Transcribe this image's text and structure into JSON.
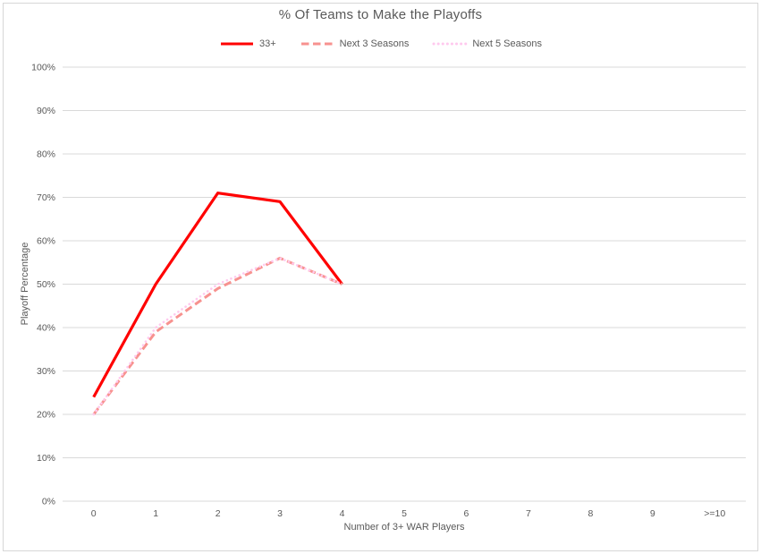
{
  "chart_data": {
    "type": "line",
    "title": "% Of Teams to Make the Playoffs",
    "xlabel": "Number of 3+ WAR Players",
    "ylabel": "Playoff Percentage",
    "categories": [
      "0",
      "1",
      "2",
      "3",
      "4",
      "5",
      "6",
      "7",
      "8",
      "9",
      ">=10"
    ],
    "ylim": [
      0,
      100
    ],
    "ytick_step": 10,
    "ytick_suffix": "%",
    "grid": "horizontal",
    "legend_position": "top-center",
    "colors": {
      "gridline": "#d9d9d9",
      "axis_text": "#595959",
      "title_text": "#595959",
      "chart_border": "#d7d7d7",
      "background": "#ffffff"
    },
    "series": [
      {
        "name": "33+",
        "color": "#ff0000",
        "style": "solid",
        "values": [
          24,
          50,
          71,
          69,
          50,
          null,
          null,
          null,
          null,
          null,
          null
        ]
      },
      {
        "name": "Next 3 Seasons",
        "color": "#f7928f",
        "style": "dashed",
        "values": [
          20,
          39,
          49,
          56,
          50,
          null,
          null,
          null,
          null,
          null,
          null
        ]
      },
      {
        "name": "Next 5 Seasons",
        "color": "#ffc9ee",
        "style": "dotted",
        "values": [
          20,
          40,
          50,
          56,
          50,
          null,
          null,
          null,
          null,
          null,
          null
        ]
      }
    ]
  }
}
